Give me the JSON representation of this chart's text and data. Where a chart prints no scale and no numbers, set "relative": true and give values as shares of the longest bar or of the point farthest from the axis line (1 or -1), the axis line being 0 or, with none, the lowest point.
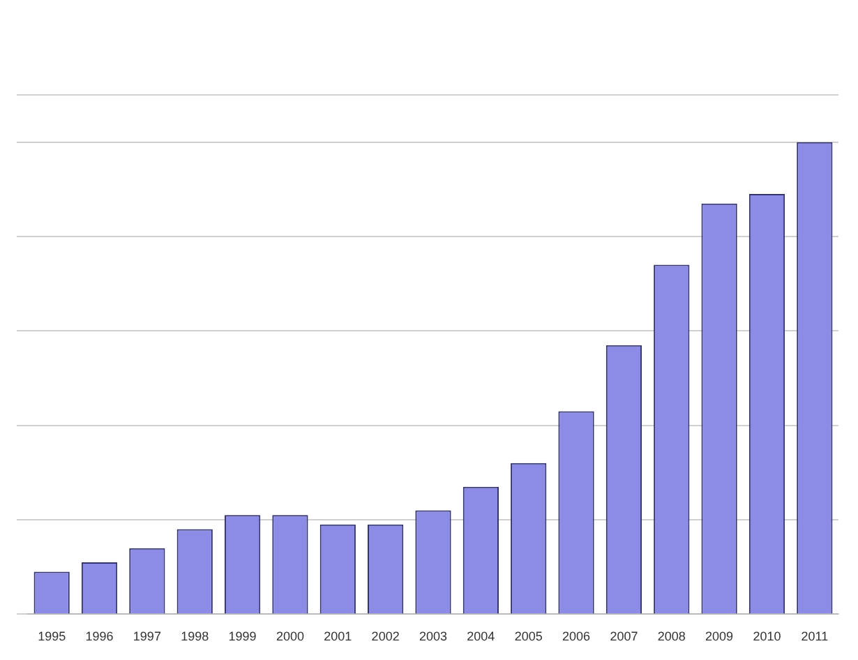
{
  "chart_data": {
    "type": "bar",
    "relative": true,
    "grid": "y",
    "color": "#8c8ce6",
    "categories": [
      "1995",
      "1996",
      "1997",
      "1998",
      "1999",
      "2000",
      "2001",
      "2002",
      "2003",
      "2004",
      "2005",
      "2006",
      "2007",
      "2008",
      "2009",
      "2010",
      "2011"
    ],
    "values": [
      0.09,
      0.11,
      0.14,
      0.18,
      0.21,
      0.21,
      0.19,
      0.19,
      0.22,
      0.27,
      0.32,
      0.43,
      0.57,
      0.74,
      0.87,
      0.89,
      1
    ]
  }
}
